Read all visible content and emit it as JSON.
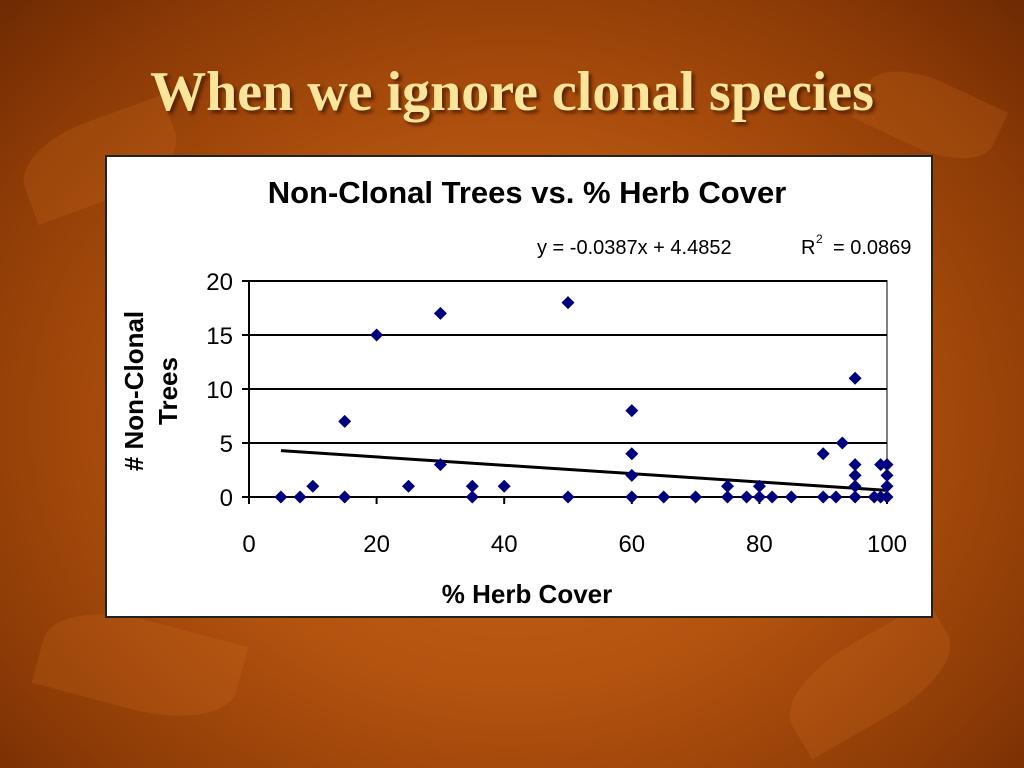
{
  "slide": {
    "title": "When we ignore clonal species"
  },
  "chart_data": {
    "type": "scatter",
    "title": "Non-Clonal Trees vs. % Herb Cover",
    "xlabel": "% Herb Cover",
    "ylabel_lines": [
      "# Non-Clonal",
      "Trees"
    ],
    "xlim": [
      0,
      100
    ],
    "ylim": [
      0,
      20
    ],
    "xticks": [
      0,
      20,
      40,
      60,
      80,
      100
    ],
    "yticks": [
      0,
      5,
      10,
      15,
      20
    ],
    "grid": "horizontal",
    "equation": "y = -0.0387x + 4.4852",
    "r2_base": "R",
    "r2_sup": "2",
    "r2_value": "= 0.0869",
    "trendline": {
      "slope": -0.0387,
      "intercept": 4.4852,
      "x_range": [
        5,
        100
      ]
    },
    "marker_color": "#00007f",
    "points": [
      [
        5,
        0
      ],
      [
        8,
        0
      ],
      [
        10,
        1
      ],
      [
        15,
        7
      ],
      [
        15,
        0
      ],
      [
        20,
        15
      ],
      [
        25,
        1
      ],
      [
        30,
        17
      ],
      [
        30,
        3
      ],
      [
        35,
        1
      ],
      [
        35,
        0
      ],
      [
        40,
        1
      ],
      [
        50,
        18
      ],
      [
        50,
        0
      ],
      [
        60,
        8
      ],
      [
        60,
        4
      ],
      [
        60,
        2
      ],
      [
        60,
        0
      ],
      [
        65,
        0
      ],
      [
        70,
        0
      ],
      [
        75,
        1
      ],
      [
        75,
        0
      ],
      [
        78,
        0
      ],
      [
        80,
        1
      ],
      [
        80,
        0
      ],
      [
        82,
        0
      ],
      [
        85,
        0
      ],
      [
        90,
        4
      ],
      [
        90,
        0
      ],
      [
        92,
        0
      ],
      [
        93,
        5
      ],
      [
        95,
        11
      ],
      [
        95,
        3
      ],
      [
        95,
        2
      ],
      [
        95,
        1
      ],
      [
        95,
        0
      ],
      [
        98,
        0
      ],
      [
        99,
        3
      ],
      [
        99,
        0
      ],
      [
        100,
        3
      ],
      [
        100,
        2
      ],
      [
        100,
        1
      ],
      [
        100,
        0
      ]
    ]
  }
}
